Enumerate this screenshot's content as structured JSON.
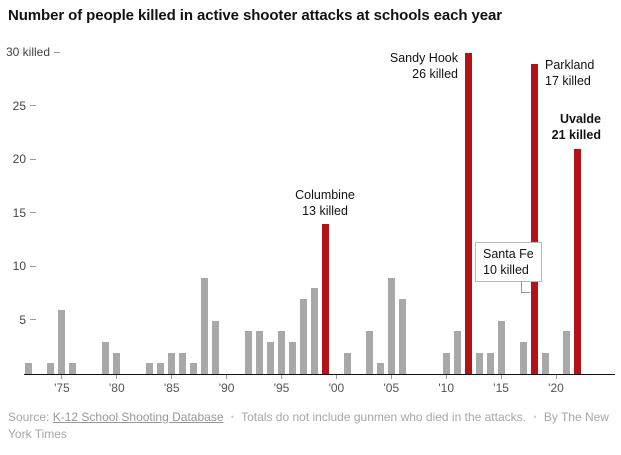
{
  "title": "Number of people killed in active shooter attacks at schools each year",
  "colors": {
    "bar_gray": "#a8a8a8",
    "bar_red": "#b3121a",
    "baseline": "#121212",
    "axis_text": "#555555",
    "footer_text": "#a6a6a6"
  },
  "chart_data": {
    "type": "bar",
    "title": "Number of people killed in active shooter attacks at schools each year",
    "ylabel": "people killed",
    "ylim": [
      0,
      30
    ],
    "year_start": 1970,
    "values": [
      0,
      0,
      1,
      0,
      1,
      6,
      1,
      0,
      0,
      3,
      2,
      0,
      0,
      1,
      1,
      2,
      2,
      1,
      9,
      5,
      0,
      0,
      4,
      4,
      3,
      4,
      3,
      7,
      8,
      14,
      0,
      2,
      0,
      4,
      1,
      9,
      7,
      0,
      0,
      0,
      2,
      4,
      30,
      2,
      2,
      5,
      0,
      3,
      29,
      2,
      0,
      4,
      21
    ],
    "highlight_years": [
      1999,
      2012,
      2018,
      2022
    ],
    "bar_color": "#a8a8a8",
    "highlight_color": "#b3121a",
    "yticks": [
      {
        "value": 30,
        "label": "30 killed"
      },
      {
        "value": 25,
        "label": "25"
      },
      {
        "value": 20,
        "label": "20"
      },
      {
        "value": 15,
        "label": "15"
      },
      {
        "value": 10,
        "label": "10"
      },
      {
        "value": 5,
        "label": "5"
      }
    ],
    "xticks": [
      {
        "year": 1975,
        "label": "'75"
      },
      {
        "year": 1980,
        "label": "'80"
      },
      {
        "year": 1985,
        "label": "'85"
      },
      {
        "year": 1990,
        "label": "'90"
      },
      {
        "year": 1995,
        "label": "'95"
      },
      {
        "year": 2000,
        "label": "'00"
      },
      {
        "year": 2005,
        "label": "'05"
      },
      {
        "year": 2010,
        "label": "'10"
      },
      {
        "year": 2015,
        "label": "'15"
      },
      {
        "year": 2020,
        "label": "'20"
      }
    ],
    "highlights": [
      {
        "event": "Columbine",
        "year": 1999,
        "killed": 13,
        "label_lines": [
          "Columbine",
          "13 killed"
        ],
        "bold": false,
        "boxed": false
      },
      {
        "event": "Sandy Hook",
        "year": 2012,
        "killed": 26,
        "label_lines": [
          "Sandy Hook",
          "26 killed"
        ],
        "bold": false,
        "boxed": false
      },
      {
        "event": "Parkland",
        "year": 2018,
        "killed": 17,
        "label_lines": [
          "Parkland",
          "17 killed"
        ],
        "bold": false,
        "boxed": false
      },
      {
        "event": "Santa Fe",
        "year": 2018,
        "killed": 10,
        "label_lines": [
          "Santa Fe",
          "10 killed"
        ],
        "bold": false,
        "boxed": true
      },
      {
        "event": "Uvalde",
        "year": 2022,
        "killed": 21,
        "label_lines": [
          "Uvalde",
          "21 killed"
        ],
        "bold": true,
        "boxed": false
      }
    ],
    "divider": {
      "year": 2018,
      "value": 12
    }
  },
  "footer": {
    "source_prefix": "Source:",
    "source_link": "K-12 School Shooting Database",
    "separator": "•",
    "note": "Totals do not include gunmen who died in the attacks.",
    "byline": "By The New York Times"
  }
}
